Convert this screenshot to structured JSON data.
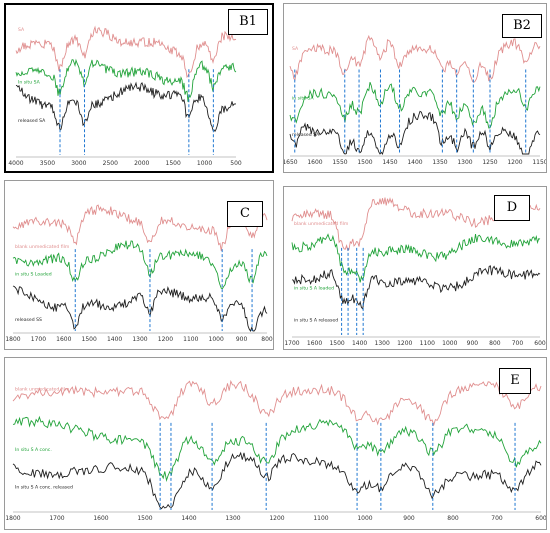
{
  "colors": {
    "sample1": "#e08f8f",
    "sample2": "#22a33a",
    "sample3": "#1f1f1f",
    "marker": "#1f77d1",
    "border": "#000000",
    "frame": "#9a9a9a"
  },
  "chart_data": [
    {
      "panel": "B1",
      "type": "line",
      "title": "B1",
      "series": [
        {
          "name": "SA"
        },
        {
          "name": "In situ SA"
        },
        {
          "name": "released SA"
        }
      ],
      "x_ticks": [
        "4000",
        "3500",
        "3000",
        "2500",
        "2000",
        "1500",
        "1000",
        "500"
      ],
      "xlim": [
        4000,
        500
      ],
      "markers": [
        3300,
        2910,
        1250,
        860
      ]
    },
    {
      "panel": "B2",
      "type": "line",
      "title": "B2",
      "series": [
        {
          "name": "SA"
        },
        {
          "name": "in situ SA"
        },
        {
          "name": "released SA"
        }
      ],
      "x_ticks": [
        "1650",
        "1600",
        "1550",
        "1500",
        "1450",
        "1400",
        "1350",
        "1300",
        "1250",
        "1200",
        "1150"
      ],
      "xlim": [
        1650,
        1125
      ],
      "markers": [
        1640,
        1535,
        1505,
        1460,
        1420,
        1330,
        1300,
        1265,
        1230,
        1155
      ]
    },
    {
      "panel": "C",
      "type": "line",
      "title": "C",
      "series": [
        {
          "name": "blank unmedicated film"
        },
        {
          "name": "in situ S Loaded"
        },
        {
          "name": "released SS"
        }
      ],
      "x_ticks": [
        "1800",
        "1700",
        "1600",
        "1500",
        "1400",
        "1300",
        "1200",
        "1100",
        "1000",
        "900",
        "800"
      ],
      "xlim": [
        1800,
        780
      ],
      "markers": [
        1550,
        1250,
        960,
        840
      ]
    },
    {
      "panel": "D",
      "type": "line",
      "title": "D",
      "series": [
        {
          "name": "blank unmedicated film"
        },
        {
          "name": "in situ S A loaded"
        },
        {
          "name": "in situ S A released"
        }
      ],
      "x_ticks": [
        "1700",
        "1600",
        "1500",
        "1400",
        "1300",
        "1200",
        "1100",
        "1000",
        "900",
        "800",
        "700",
        "600"
      ],
      "xlim": [
        1750,
        600
      ],
      "markers": [
        1520,
        1490,
        1450,
        1420
      ]
    },
    {
      "panel": "E",
      "type": "line",
      "title": "E",
      "series": [
        {
          "name": "blank unmedicated film"
        },
        {
          "name": "In situ S A conc."
        },
        {
          "name": "In situ S A conc. released"
        }
      ],
      "x_ticks": [
        "1800",
        "1700",
        "1600",
        "1500",
        "1400",
        "1300",
        "1200",
        "1100",
        "1000",
        "900",
        "800",
        "700",
        "600"
      ],
      "xlim": [
        1820,
        600
      ],
      "markers": [
        1480,
        1455,
        1360,
        1235,
        1025,
        970,
        850,
        660
      ]
    }
  ]
}
